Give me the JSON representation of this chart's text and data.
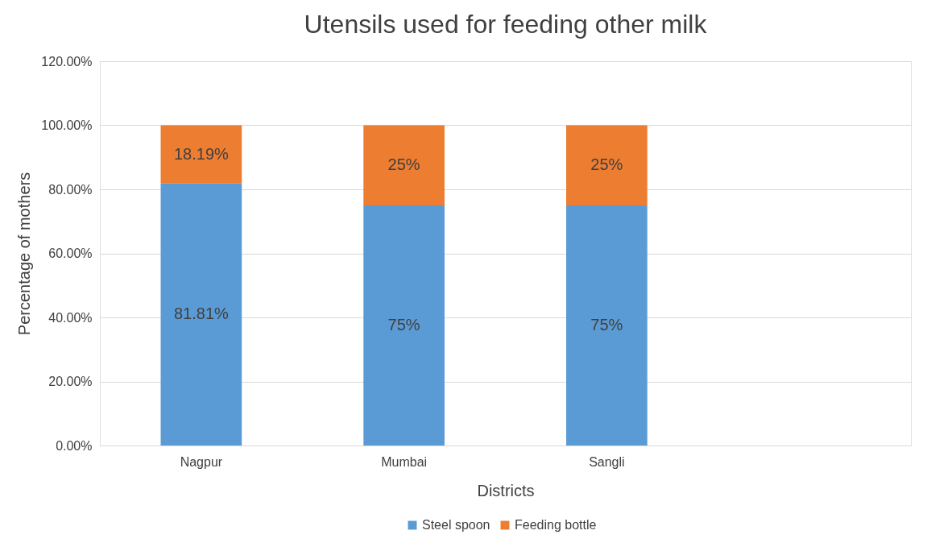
{
  "chart_data": {
    "type": "bar",
    "title": "Utensils used for feeding other milk",
    "xlabel": "Districts",
    "ylabel": "Percentage of mothers",
    "categories": [
      "Nagpur",
      "Mumbai",
      "Sangli",
      null
    ],
    "stacked": true,
    "series": [
      {
        "name": "Steel spoon",
        "color": "#5b9bd5",
        "values": [
          81.81,
          75,
          75,
          null
        ],
        "value_labels": [
          "81.81%",
          "75%",
          "75%",
          null
        ]
      },
      {
        "name": "Feeding bottle",
        "color": "#ed7d31",
        "values": [
          18.19,
          25,
          25,
          null
        ],
        "value_labels": [
          "18.19%",
          "25%",
          "25%",
          null
        ]
      }
    ],
    "ylim": [
      0,
      120
    ],
    "yticks": [
      {
        "value": 0,
        "label": "0.00%"
      },
      {
        "value": 20,
        "label": "20.00%"
      },
      {
        "value": 40,
        "label": "40.00%"
      },
      {
        "value": 60,
        "label": "60.00%"
      },
      {
        "value": 80,
        "label": "80.00%"
      },
      {
        "value": 100,
        "label": "100.00%"
      },
      {
        "value": 120,
        "label": "120.00%"
      }
    ],
    "grid": "y",
    "legend": "bottom"
  }
}
